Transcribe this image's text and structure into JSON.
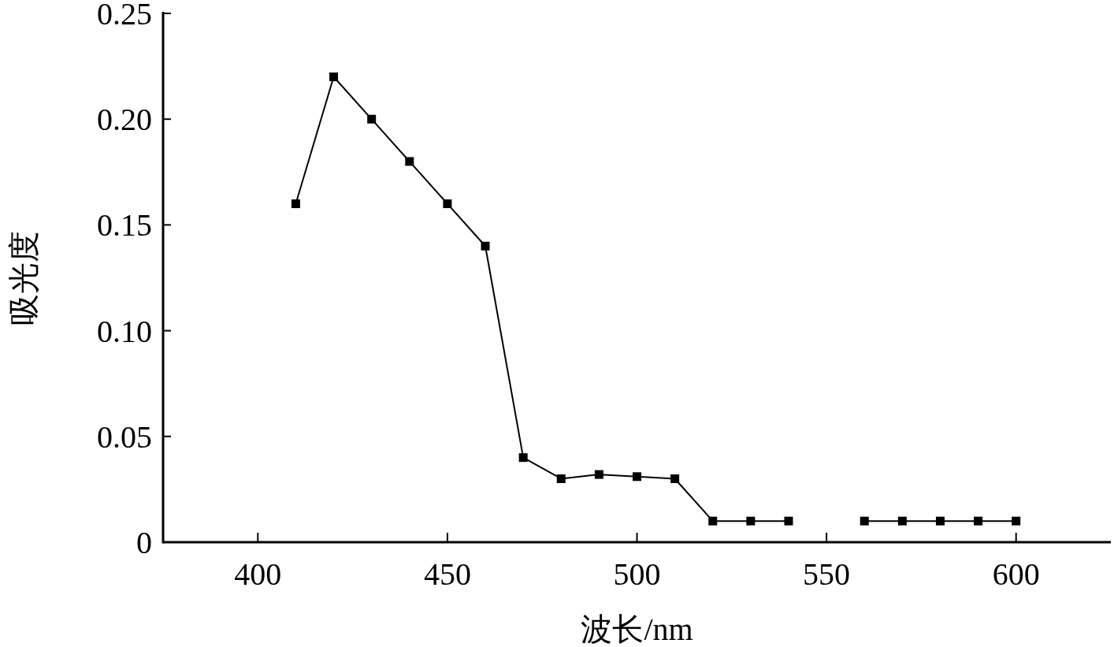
{
  "chart_data": {
    "type": "line",
    "xlabel": "波长/nm",
    "ylabel": "吸光度",
    "x": [
      410,
      420,
      430,
      440,
      450,
      460,
      470,
      480,
      490,
      500,
      510,
      520,
      530,
      540,
      550,
      560,
      570,
      580,
      590,
      600
    ],
    "series": [
      {
        "color": "#000000",
        "values": [
          0.16,
          0.22,
          0.2,
          0.18,
          0.16,
          0.14,
          0.04,
          0.03,
          0.032,
          0.031,
          0.03,
          0.01,
          0.01,
          0.01,
          null,
          0.01,
          0.01,
          0.01,
          0.01,
          0.01
        ]
      }
    ],
    "xlim": [
      375,
      625
    ],
    "xticks": [
      400,
      450,
      500,
      550,
      600
    ],
    "ylim": [
      0,
      0.25
    ],
    "yticks": [
      0,
      0.05,
      {
        "value": 0.1,
        "label": "0.10"
      },
      0.15,
      {
        "value": 0.2,
        "label": "0.20"
      },
      0.25
    ],
    "marker": "square",
    "line_style": "solid",
    "grid": false
  }
}
